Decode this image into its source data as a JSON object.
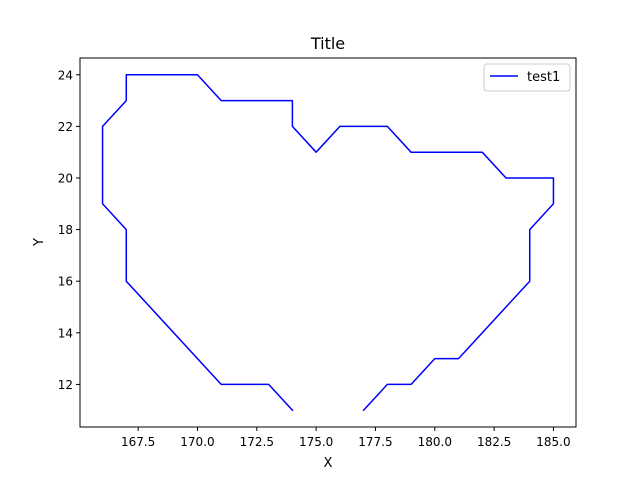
{
  "chart_data": {
    "type": "line",
    "title": "Title",
    "xlabel": "X",
    "ylabel": "Y",
    "xlim": [
      165.05,
      185.95
    ],
    "ylim": [
      10.35,
      24.65
    ],
    "xticks": [
      167.5,
      170.0,
      172.5,
      175.0,
      177.5,
      180.0,
      182.5,
      185.0
    ],
    "xtick_labels": [
      "167.5",
      "170.0",
      "172.5",
      "175.0",
      "177.5",
      "180.0",
      "182.5",
      "185.0"
    ],
    "yticks": [
      12,
      14,
      16,
      18,
      20,
      22,
      24
    ],
    "ytick_labels": [
      "12",
      "14",
      "16",
      "18",
      "20",
      "22",
      "24"
    ],
    "grid": false,
    "legend_position": "top-right",
    "series": [
      {
        "name": "test1",
        "color": "#0000ff",
        "x": [
          174,
          173,
          171,
          167,
          167,
          166,
          166,
          167,
          167,
          170,
          171,
          174,
          174,
          175,
          176,
          178,
          179,
          182,
          183,
          185,
          185,
          184,
          184,
          181,
          180,
          179,
          178,
          177
        ],
        "y": [
          11,
          12,
          12,
          16,
          18,
          19,
          22,
          23,
          24,
          24,
          23,
          23,
          22,
          21,
          22,
          22,
          21,
          21,
          20,
          20,
          19,
          18,
          16,
          13,
          13,
          12,
          12,
          11
        ]
      }
    ]
  }
}
